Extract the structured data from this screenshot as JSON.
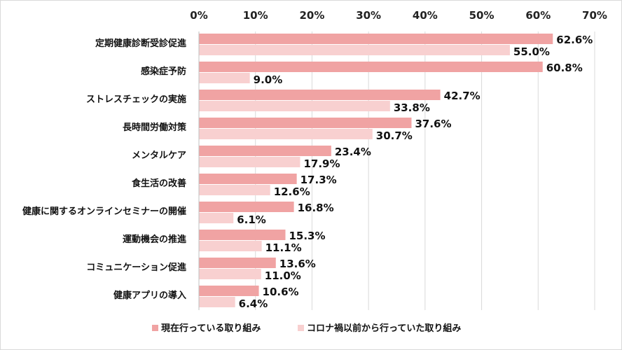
{
  "chart_data": {
    "type": "bar",
    "orientation": "horizontal",
    "title": "",
    "xlabel": "",
    "ylabel": "",
    "xlim": [
      0,
      70
    ],
    "x_ticks": [
      "0%",
      "10%",
      "20%",
      "30%",
      "40%",
      "50%",
      "60%",
      "70%"
    ],
    "x_tick_values": [
      0,
      10,
      20,
      30,
      40,
      50,
      60,
      70
    ],
    "grid": "vertical",
    "legend_position": "bottom",
    "categories": [
      "定期健康診断受診促進",
      "感染症予防",
      "ストレスチェックの実施",
      "長時間労働対策",
      "メンタルケア",
      "食生活の改善",
      "健康に関するオンラインセミナーの開催",
      "運動機会の推進",
      "コミュニケーション促進",
      "健康アプリの導入"
    ],
    "series": [
      {
        "name": "現在行っている取り組み",
        "color": "#f0a3a3",
        "values": [
          62.6,
          60.8,
          42.7,
          37.6,
          23.4,
          17.3,
          16.8,
          15.3,
          13.6,
          10.6
        ],
        "labels": [
          "62.6%",
          "60.8%",
          "42.7%",
          "37.6%",
          "23.4%",
          "17.3%",
          "16.8%",
          "15.3%",
          "13.6%",
          "10.6%"
        ]
      },
      {
        "name": "コロナ禍以前から行っていた取り組み",
        "color": "#f8d0d0",
        "values": [
          55.0,
          9.0,
          33.8,
          30.7,
          17.9,
          12.6,
          6.1,
          11.1,
          11.0,
          6.4
        ],
        "labels": [
          "55.0%",
          "9.0%",
          "33.8%",
          "30.7%",
          "17.9%",
          "12.6%",
          "6.1%",
          "11.1%",
          "11.0%",
          "6.4%"
        ]
      }
    ]
  }
}
